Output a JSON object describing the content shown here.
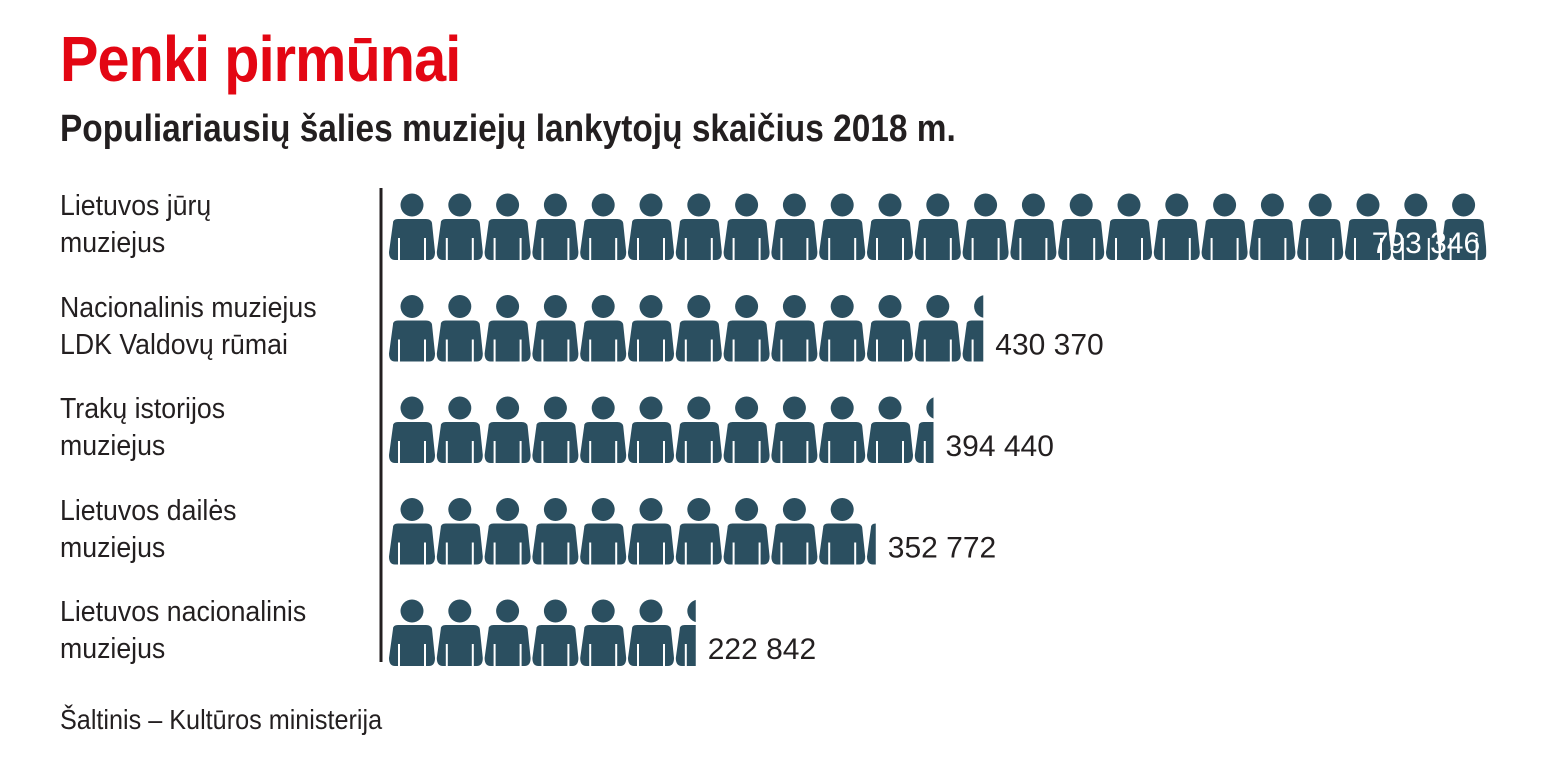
{
  "header": {
    "title": "Penki pirmūnai",
    "subtitle": "Populiariausių šalies muziejų lankytojų skaičius 2018 m."
  },
  "source": "Šaltinis – Kultūros ministerija",
  "colors": {
    "title": "#e30613",
    "icon": "#2b4f60",
    "text": "#231f20"
  },
  "chart_data": {
    "type": "bar",
    "style": "pictogram",
    "title": "Populiariausių šalies muziejų lankytojų skaičius 2018 m.",
    "categories": [
      [
        "Lietuvos jūrų",
        "muziejus"
      ],
      [
        "Nacionalinis muziejus",
        "LDK Valdovų rūmai"
      ],
      [
        "Trakų istorijos",
        "muziejus"
      ],
      [
        "Lietuvos dailės",
        "muziejus"
      ],
      [
        "Lietuvos nacionalinis",
        "muziejus"
      ]
    ],
    "values": [
      793346,
      430370,
      394440,
      352772,
      222842
    ],
    "value_labels": [
      "793 346",
      "430 370",
      "394 440",
      "352 772",
      "222 842"
    ],
    "unit_per_icon": 34500
  }
}
